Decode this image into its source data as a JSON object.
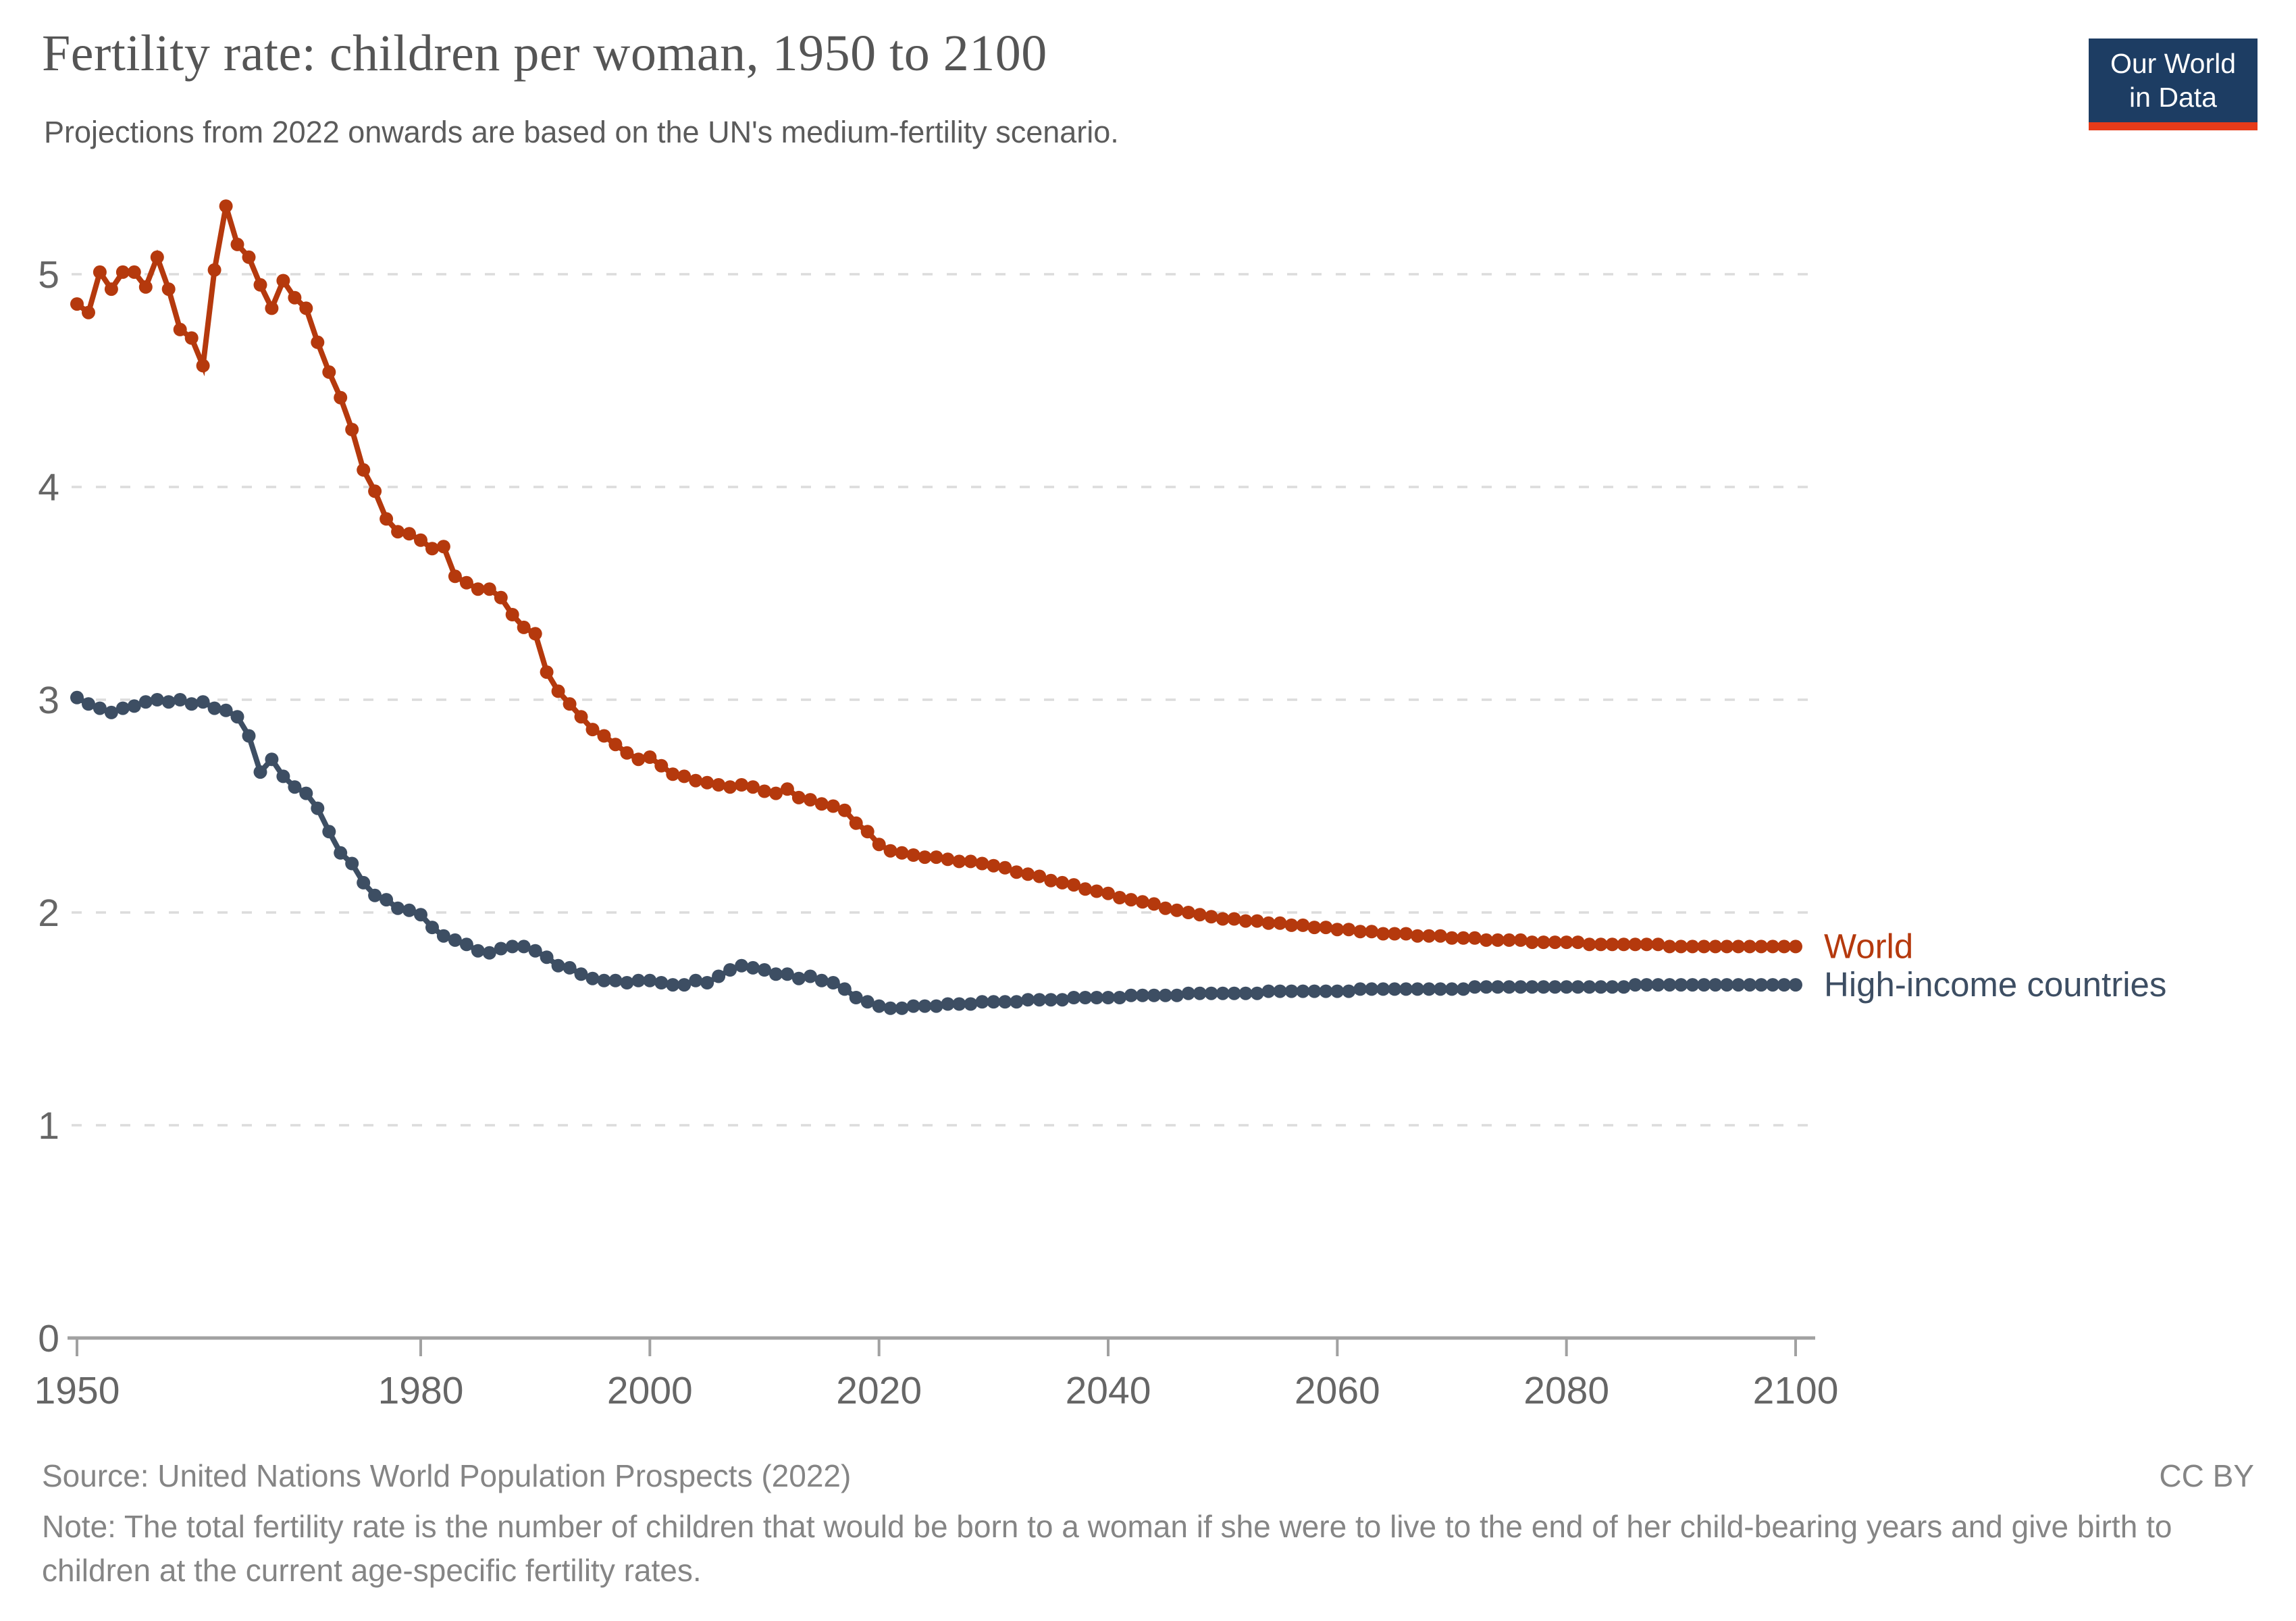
{
  "header": {
    "title": "Fertility rate: children per woman, 1950 to 2100",
    "subtitle": "Projections from 2022 onwards are based on the UN's medium-fertility scenario."
  },
  "logo": {
    "line1": "Our World",
    "line2": "in Data",
    "bg_color": "#1d3d63",
    "bar_color": "#e63b19"
  },
  "chart_data": {
    "type": "line",
    "title": "Fertility rate: children per woman, 1950 to 2100",
    "xlabel": "",
    "ylabel": "",
    "xlim": [
      1950,
      2100
    ],
    "ylim": [
      0,
      5.5
    ],
    "xticks": [
      1950,
      1980,
      2000,
      2020,
      2040,
      2060,
      2080,
      2100
    ],
    "yticks": [
      0,
      1,
      2,
      3,
      4,
      5
    ],
    "grid": "horizontal-dashed",
    "legend_position": "end-of-line",
    "x": [
      1950,
      1951,
      1952,
      1953,
      1954,
      1955,
      1956,
      1957,
      1958,
      1959,
      1960,
      1961,
      1962,
      1963,
      1964,
      1965,
      1966,
      1967,
      1968,
      1969,
      1970,
      1971,
      1972,
      1973,
      1974,
      1975,
      1976,
      1977,
      1978,
      1979,
      1980,
      1981,
      1982,
      1983,
      1984,
      1985,
      1986,
      1987,
      1988,
      1989,
      1990,
      1991,
      1992,
      1993,
      1994,
      1995,
      1996,
      1997,
      1998,
      1999,
      2000,
      2001,
      2002,
      2003,
      2004,
      2005,
      2006,
      2007,
      2008,
      2009,
      2010,
      2011,
      2012,
      2013,
      2014,
      2015,
      2016,
      2017,
      2018,
      2019,
      2020,
      2021,
      2022,
      2023,
      2024,
      2025,
      2026,
      2027,
      2028,
      2029,
      2030,
      2031,
      2032,
      2033,
      2034,
      2035,
      2036,
      2037,
      2038,
      2039,
      2040,
      2041,
      2042,
      2043,
      2044,
      2045,
      2046,
      2047,
      2048,
      2049,
      2050,
      2051,
      2052,
      2053,
      2054,
      2055,
      2056,
      2057,
      2058,
      2059,
      2060,
      2061,
      2062,
      2063,
      2064,
      2065,
      2066,
      2067,
      2068,
      2069,
      2070,
      2071,
      2072,
      2073,
      2074,
      2075,
      2076,
      2077,
      2078,
      2079,
      2080,
      2081,
      2082,
      2083,
      2084,
      2085,
      2086,
      2087,
      2088,
      2089,
      2090,
      2091,
      2092,
      2093,
      2094,
      2095,
      2096,
      2097,
      2098,
      2099,
      2100
    ],
    "series": [
      {
        "name": "World",
        "color": "#b5390d",
        "values": [
          4.86,
          4.82,
          5.01,
          4.93,
          5.01,
          5.01,
          4.94,
          5.08,
          4.93,
          4.74,
          4.7,
          4.57,
          5.02,
          5.32,
          5.14,
          5.08,
          4.95,
          4.84,
          4.97,
          4.89,
          4.84,
          4.68,
          4.54,
          4.42,
          4.27,
          4.08,
          3.98,
          3.85,
          3.79,
          3.78,
          3.75,
          3.71,
          3.72,
          3.58,
          3.55,
          3.52,
          3.52,
          3.48,
          3.4,
          3.34,
          3.31,
          3.13,
          3.04,
          2.98,
          2.92,
          2.86,
          2.83,
          2.79,
          2.75,
          2.72,
          2.73,
          2.69,
          2.65,
          2.64,
          2.62,
          2.61,
          2.6,
          2.59,
          2.6,
          2.59,
          2.57,
          2.56,
          2.58,
          2.54,
          2.53,
          2.51,
          2.5,
          2.48,
          2.42,
          2.38,
          2.32,
          2.29,
          2.28,
          2.27,
          2.26,
          2.26,
          2.25,
          2.24,
          2.24,
          2.23,
          2.22,
          2.21,
          2.19,
          2.18,
          2.17,
          2.15,
          2.14,
          2.13,
          2.11,
          2.1,
          2.09,
          2.07,
          2.06,
          2.05,
          2.04,
          2.02,
          2.01,
          2.0,
          1.99,
          1.98,
          1.97,
          1.97,
          1.96,
          1.96,
          1.95,
          1.95,
          1.94,
          1.94,
          1.93,
          1.93,
          1.92,
          1.92,
          1.91,
          1.91,
          1.9,
          1.9,
          1.9,
          1.89,
          1.89,
          1.89,
          1.88,
          1.88,
          1.88,
          1.87,
          1.87,
          1.87,
          1.87,
          1.86,
          1.86,
          1.86,
          1.86,
          1.86,
          1.85,
          1.85,
          1.85,
          1.85,
          1.85,
          1.85,
          1.85,
          1.84,
          1.84,
          1.84,
          1.84,
          1.84,
          1.84,
          1.84,
          1.84,
          1.84,
          1.84,
          1.84,
          1.84
        ]
      },
      {
        "name": "High-income countries",
        "color": "#3d4e63",
        "values": [
          3.01,
          2.98,
          2.96,
          2.94,
          2.96,
          2.97,
          2.99,
          3.0,
          2.99,
          3.0,
          2.98,
          2.99,
          2.96,
          2.95,
          2.92,
          2.83,
          2.66,
          2.72,
          2.64,
          2.59,
          2.56,
          2.49,
          2.38,
          2.28,
          2.23,
          2.14,
          2.08,
          2.06,
          2.02,
          2.01,
          1.99,
          1.93,
          1.89,
          1.87,
          1.85,
          1.82,
          1.81,
          1.83,
          1.84,
          1.84,
          1.82,
          1.79,
          1.75,
          1.74,
          1.71,
          1.69,
          1.68,
          1.68,
          1.67,
          1.68,
          1.68,
          1.67,
          1.66,
          1.66,
          1.68,
          1.67,
          1.7,
          1.73,
          1.75,
          1.74,
          1.73,
          1.71,
          1.71,
          1.69,
          1.7,
          1.68,
          1.67,
          1.64,
          1.6,
          1.58,
          1.56,
          1.55,
          1.55,
          1.56,
          1.56,
          1.56,
          1.57,
          1.57,
          1.57,
          1.58,
          1.58,
          1.58,
          1.58,
          1.59,
          1.59,
          1.59,
          1.59,
          1.6,
          1.6,
          1.6,
          1.6,
          1.6,
          1.61,
          1.61,
          1.61,
          1.61,
          1.61,
          1.62,
          1.62,
          1.62,
          1.62,
          1.62,
          1.62,
          1.62,
          1.63,
          1.63,
          1.63,
          1.63,
          1.63,
          1.63,
          1.63,
          1.63,
          1.64,
          1.64,
          1.64,
          1.64,
          1.64,
          1.64,
          1.64,
          1.64,
          1.64,
          1.64,
          1.65,
          1.65,
          1.65,
          1.65,
          1.65,
          1.65,
          1.65,
          1.65,
          1.65,
          1.65,
          1.65,
          1.65,
          1.65,
          1.65,
          1.66,
          1.66,
          1.66,
          1.66,
          1.66,
          1.66,
          1.66,
          1.66,
          1.66,
          1.66,
          1.66,
          1.66,
          1.66,
          1.66,
          1.66
        ]
      }
    ],
    "colors": {
      "grid": "#dcdcdc",
      "axis": "#a1a1a1",
      "tick_label": "#666666"
    }
  },
  "footer": {
    "source": "Source: United Nations World Population Prospects (2022)",
    "license": "CC BY",
    "note": "Note: The total fertility rate is the number of children that would be born to a woman if she were to live to the end of her child-bearing years and give birth to children at the current age-specific fertility rates."
  }
}
